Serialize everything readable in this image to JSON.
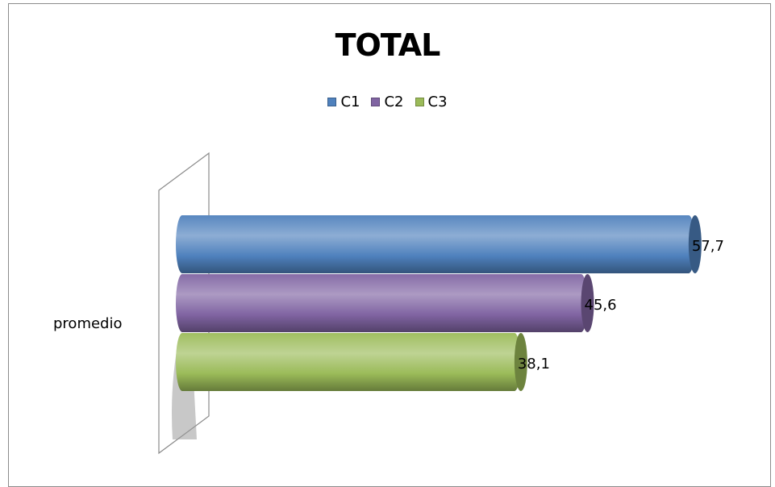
{
  "chart_data": {
    "type": "bar",
    "orientation": "horizontal",
    "style": "3d-cylinder",
    "title": "TOTAL",
    "categories": [
      "promedio"
    ],
    "series": [
      {
        "name": "C1",
        "values": [
          57.7
        ],
        "label": "57,7",
        "color": "#4f81bd"
      },
      {
        "name": "C2",
        "values": [
          45.6
        ],
        "label": "45,6",
        "color": "#8064a2"
      },
      {
        "name": "C3",
        "values": [
          38.1
        ],
        "label": "38,1",
        "color": "#9bbb59"
      }
    ],
    "xlim": [
      0,
      60
    ],
    "legend_position": "top",
    "grid": false
  }
}
